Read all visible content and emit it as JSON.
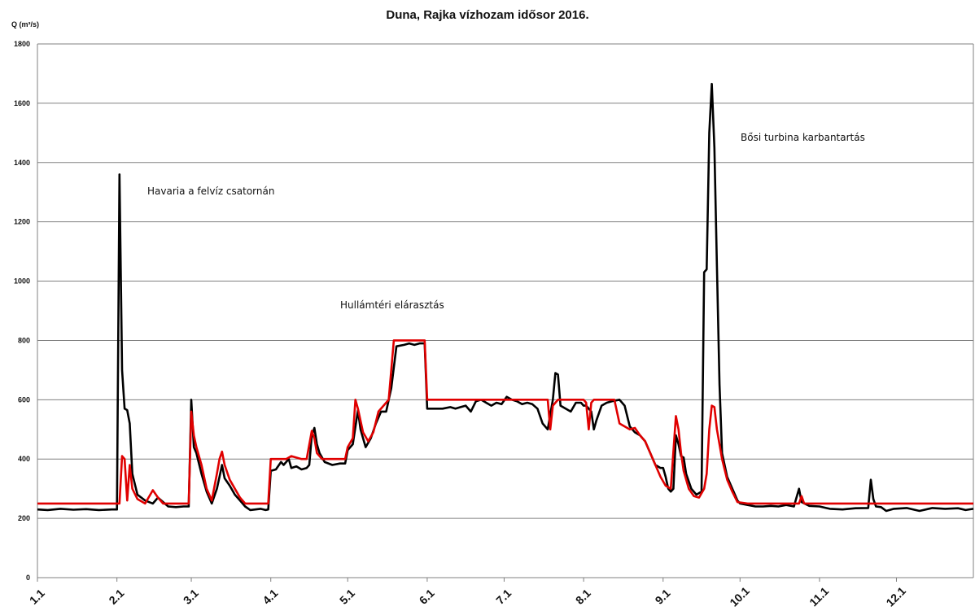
{
  "chart_data": {
    "type": "line",
    "title": "Duna, Rajka vízhozam idősor 2016.",
    "ylabel": "Q (m³/s)",
    "xlabel": "",
    "ylim": [
      0,
      1800
    ],
    "y_ticks": [
      0,
      200,
      400,
      600,
      800,
      1000,
      1200,
      1400,
      1600,
      1800
    ],
    "x_range": [
      1,
      366
    ],
    "x_ticks": [
      {
        "label": "1.1",
        "day": 1
      },
      {
        "label": "2.1",
        "day": 32
      },
      {
        "label": "3.1",
        "day": 61
      },
      {
        "label": "4.1",
        "day": 92
      },
      {
        "label": "5.1",
        "day": 122
      },
      {
        "label": "6.1",
        "day": 153
      },
      {
        "label": "7.1",
        "day": 183
      },
      {
        "label": "8.1",
        "day": 214
      },
      {
        "label": "9.1",
        "day": 245
      },
      {
        "label": "10.1",
        "day": 275
      },
      {
        "label": "11.1",
        "day": 306
      },
      {
        "label": "12.1",
        "day": 336
      }
    ],
    "grid": true,
    "legend": "none",
    "annotations": [
      {
        "text": "Havaria a felvíz csatornán"
      },
      {
        "text": "Hullámtéri elárasztás"
      },
      {
        "text": "Bősi turbina karbantartás"
      }
    ],
    "series": [
      {
        "color": "#000000",
        "points": [
          [
            1,
            230
          ],
          [
            5,
            228
          ],
          [
            10,
            232
          ],
          [
            15,
            229
          ],
          [
            20,
            231
          ],
          [
            25,
            228
          ],
          [
            30,
            230
          ],
          [
            32,
            230
          ],
          [
            33,
            1360
          ],
          [
            34,
            700
          ],
          [
            35,
            570
          ],
          [
            36,
            565
          ],
          [
            37,
            520
          ],
          [
            38,
            350
          ],
          [
            40,
            280
          ],
          [
            43,
            260
          ],
          [
            46,
            250
          ],
          [
            48,
            270
          ],
          [
            50,
            255
          ],
          [
            52,
            240
          ],
          [
            55,
            238
          ],
          [
            58,
            240
          ],
          [
            60,
            240
          ],
          [
            61,
            600
          ],
          [
            62,
            440
          ],
          [
            63,
            420
          ],
          [
            65,
            350
          ],
          [
            67,
            290
          ],
          [
            69,
            250
          ],
          [
            71,
            300
          ],
          [
            72,
            340
          ],
          [
            73,
            380
          ],
          [
            74,
            335
          ],
          [
            76,
            310
          ],
          [
            78,
            280
          ],
          [
            80,
            260
          ],
          [
            82,
            240
          ],
          [
            84,
            228
          ],
          [
            86,
            230
          ],
          [
            88,
            232
          ],
          [
            90,
            228
          ],
          [
            91,
            230
          ],
          [
            92,
            360
          ],
          [
            94,
            365
          ],
          [
            96,
            390
          ],
          [
            97,
            380
          ],
          [
            99,
            400
          ],
          [
            100,
            370
          ],
          [
            102,
            375
          ],
          [
            104,
            365
          ],
          [
            106,
            370
          ],
          [
            107,
            380
          ],
          [
            108,
            480
          ],
          [
            109,
            505
          ],
          [
            110,
            450
          ],
          [
            111,
            420
          ],
          [
            113,
            390
          ],
          [
            116,
            380
          ],
          [
            119,
            385
          ],
          [
            121,
            385
          ],
          [
            122,
            430
          ],
          [
            124,
            450
          ],
          [
            126,
            565
          ],
          [
            127,
            500
          ],
          [
            128,
            470
          ],
          [
            129,
            440
          ],
          [
            131,
            470
          ],
          [
            133,
            520
          ],
          [
            135,
            560
          ],
          [
            137,
            560
          ],
          [
            139,
            640
          ],
          [
            141,
            780
          ],
          [
            144,
            785
          ],
          [
            146,
            790
          ],
          [
            148,
            785
          ],
          [
            150,
            790
          ],
          [
            152,
            790
          ],
          [
            153,
            570
          ],
          [
            156,
            570
          ],
          [
            159,
            570
          ],
          [
            162,
            575
          ],
          [
            164,
            570
          ],
          [
            166,
            575
          ],
          [
            168,
            580
          ],
          [
            170,
            560
          ],
          [
            172,
            595
          ],
          [
            174,
            600
          ],
          [
            176,
            590
          ],
          [
            178,
            580
          ],
          [
            180,
            590
          ],
          [
            182,
            585
          ],
          [
            184,
            610
          ],
          [
            186,
            600
          ],
          [
            188,
            595
          ],
          [
            190,
            585
          ],
          [
            192,
            590
          ],
          [
            194,
            585
          ],
          [
            196,
            570
          ],
          [
            198,
            520
          ],
          [
            200,
            500
          ],
          [
            202,
            600
          ],
          [
            203,
            690
          ],
          [
            204,
            685
          ],
          [
            205,
            580
          ],
          [
            207,
            570
          ],
          [
            209,
            560
          ],
          [
            211,
            590
          ],
          [
            213,
            590
          ],
          [
            214,
            580
          ],
          [
            215,
            580
          ],
          [
            217,
            560
          ],
          [
            218,
            500
          ],
          [
            219,
            530
          ],
          [
            221,
            580
          ],
          [
            223,
            590
          ],
          [
            225,
            595
          ],
          [
            228,
            600
          ],
          [
            230,
            580
          ],
          [
            232,
            510
          ],
          [
            234,
            490
          ],
          [
            236,
            480
          ],
          [
            238,
            460
          ],
          [
            240,
            420
          ],
          [
            242,
            380
          ],
          [
            244,
            370
          ],
          [
            245,
            370
          ],
          [
            246,
            340
          ],
          [
            247,
            300
          ],
          [
            248,
            290
          ],
          [
            249,
            300
          ],
          [
            250,
            480
          ],
          [
            251,
            450
          ],
          [
            252,
            410
          ],
          [
            253,
            405
          ],
          [
            254,
            350
          ],
          [
            256,
            300
          ],
          [
            258,
            280
          ],
          [
            260,
            290
          ],
          [
            261,
            1030
          ],
          [
            262,
            1040
          ],
          [
            263,
            1500
          ],
          [
            264,
            1665
          ],
          [
            265,
            1450
          ],
          [
            266,
            1050
          ],
          [
            267,
            650
          ],
          [
            268,
            420
          ],
          [
            270,
            340
          ],
          [
            272,
            300
          ],
          [
            274,
            260
          ],
          [
            275,
            250
          ],
          [
            278,
            245
          ],
          [
            281,
            240
          ],
          [
            284,
            240
          ],
          [
            287,
            242
          ],
          [
            290,
            240
          ],
          [
            293,
            245
          ],
          [
            296,
            240
          ],
          [
            298,
            300
          ],
          [
            299,
            255
          ],
          [
            302,
            242
          ],
          [
            306,
            240
          ],
          [
            310,
            232
          ],
          [
            315,
            230
          ],
          [
            320,
            234
          ],
          [
            325,
            235
          ],
          [
            326,
            330
          ],
          [
            327,
            265
          ],
          [
            328,
            240
          ],
          [
            330,
            238
          ],
          [
            332,
            225
          ],
          [
            335,
            232
          ],
          [
            340,
            235
          ],
          [
            345,
            225
          ],
          [
            350,
            235
          ],
          [
            355,
            232
          ],
          [
            360,
            234
          ],
          [
            363,
            228
          ],
          [
            366,
            232
          ]
        ]
      },
      {
        "color": "#e00000",
        "points": [
          [
            1,
            250
          ],
          [
            32,
            250
          ],
          [
            33,
            250
          ],
          [
            34,
            410
          ],
          [
            35,
            400
          ],
          [
            36,
            260
          ],
          [
            37,
            380
          ],
          [
            38,
            300
          ],
          [
            40,
            265
          ],
          [
            43,
            250
          ],
          [
            46,
            295
          ],
          [
            48,
            270
          ],
          [
            50,
            250
          ],
          [
            60,
            250
          ],
          [
            61,
            560
          ],
          [
            62,
            480
          ],
          [
            63,
            440
          ],
          [
            65,
            380
          ],
          [
            67,
            300
          ],
          [
            69,
            260
          ],
          [
            71,
            350
          ],
          [
            72,
            400
          ],
          [
            73,
            425
          ],
          [
            74,
            380
          ],
          [
            76,
            330
          ],
          [
            78,
            300
          ],
          [
            80,
            270
          ],
          [
            82,
            250
          ],
          [
            91,
            250
          ],
          [
            92,
            400
          ],
          [
            98,
            400
          ],
          [
            100,
            410
          ],
          [
            104,
            400
          ],
          [
            106,
            400
          ],
          [
            108,
            495
          ],
          [
            109,
            470
          ],
          [
            110,
            420
          ],
          [
            112,
            400
          ],
          [
            116,
            400
          ],
          [
            121,
            400
          ],
          [
            122,
            440
          ],
          [
            124,
            470
          ],
          [
            125,
            600
          ],
          [
            126,
            570
          ],
          [
            128,
            490
          ],
          [
            130,
            460
          ],
          [
            132,
            490
          ],
          [
            134,
            560
          ],
          [
            136,
            580
          ],
          [
            138,
            600
          ],
          [
            140,
            800
          ],
          [
            152,
            800
          ],
          [
            153,
            600
          ],
          [
            200,
            600
          ],
          [
            201,
            500
          ],
          [
            202,
            580
          ],
          [
            204,
            600
          ],
          [
            213,
            600
          ],
          [
            214,
            600
          ],
          [
            215,
            590
          ],
          [
            216,
            500
          ],
          [
            217,
            590
          ],
          [
            218,
            600
          ],
          [
            226,
            600
          ],
          [
            228,
            520
          ],
          [
            232,
            500
          ],
          [
            234,
            505
          ],
          [
            236,
            480
          ],
          [
            238,
            460
          ],
          [
            240,
            420
          ],
          [
            242,
            380
          ],
          [
            244,
            340
          ],
          [
            246,
            310
          ],
          [
            248,
            300
          ],
          [
            250,
            545
          ],
          [
            251,
            500
          ],
          [
            252,
            420
          ],
          [
            253,
            360
          ],
          [
            255,
            300
          ],
          [
            257,
            275
          ],
          [
            259,
            270
          ],
          [
            261,
            300
          ],
          [
            262,
            350
          ],
          [
            263,
            500
          ],
          [
            264,
            580
          ],
          [
            265,
            575
          ],
          [
            266,
            500
          ],
          [
            268,
            400
          ],
          [
            270,
            330
          ],
          [
            272,
            290
          ],
          [
            274,
            255
          ],
          [
            278,
            250
          ],
          [
            282,
            250
          ],
          [
            298,
            250
          ],
          [
            299,
            275
          ],
          [
            300,
            250
          ],
          [
            366,
            250
          ]
        ]
      }
    ]
  }
}
